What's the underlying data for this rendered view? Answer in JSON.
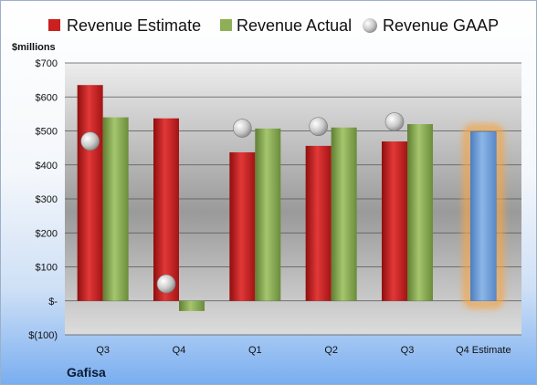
{
  "chart_data": {
    "type": "bar",
    "unit_label": "$millions",
    "company": "Gafisa",
    "categories": [
      "Q3",
      "Q4",
      "Q1",
      "Q2",
      "Q3",
      "Q4 Estimate"
    ],
    "series": [
      {
        "name": "Revenue Estimate",
        "values": [
          635,
          537,
          437,
          456,
          469,
          null
        ],
        "color": "#cc1f1f"
      },
      {
        "name": "Revenue Actual",
        "values": [
          540,
          -30,
          507,
          510,
          520,
          null
        ],
        "color": "#8db057"
      },
      {
        "name": "Revenue GAAP",
        "values": [
          470,
          50,
          508,
          513,
          527,
          null
        ],
        "color": "#c8c8c8"
      }
    ],
    "estimate": {
      "category": "Q4 Estimate",
      "value": 498,
      "color": "#6f9fd8",
      "glow": "#f3a64a"
    },
    "ylim": [
      -100,
      700
    ],
    "yticks": [
      700,
      600,
      500,
      400,
      300,
      200,
      100,
      0,
      -100
    ],
    "ytick_labels": [
      "$700",
      "$600",
      "$500",
      "$400",
      "$300",
      "$200",
      "$100",
      "$-",
      "$(100)"
    ],
    "grid": true,
    "legend_position": "top"
  }
}
